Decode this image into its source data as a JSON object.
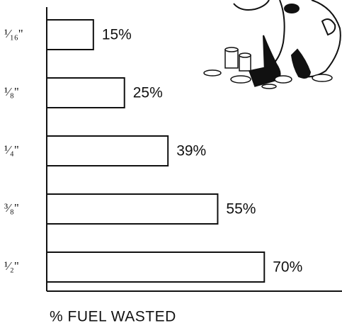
{
  "chart_data": {
    "type": "hbar",
    "categories": [
      "¹⁄₁₆\"",
      "¹⁄₈\"",
      "¹⁄₄\"",
      "³⁄₈\"",
      "¹⁄₂\""
    ],
    "values": [
      15,
      25,
      39,
      55,
      70
    ],
    "value_labels": [
      "15%",
      "25%",
      "39%",
      "55%",
      "70%"
    ],
    "color": "#ffffff",
    "xlabel": "% FUEL WASTED",
    "xlim": [
      0,
      95
    ]
  }
}
